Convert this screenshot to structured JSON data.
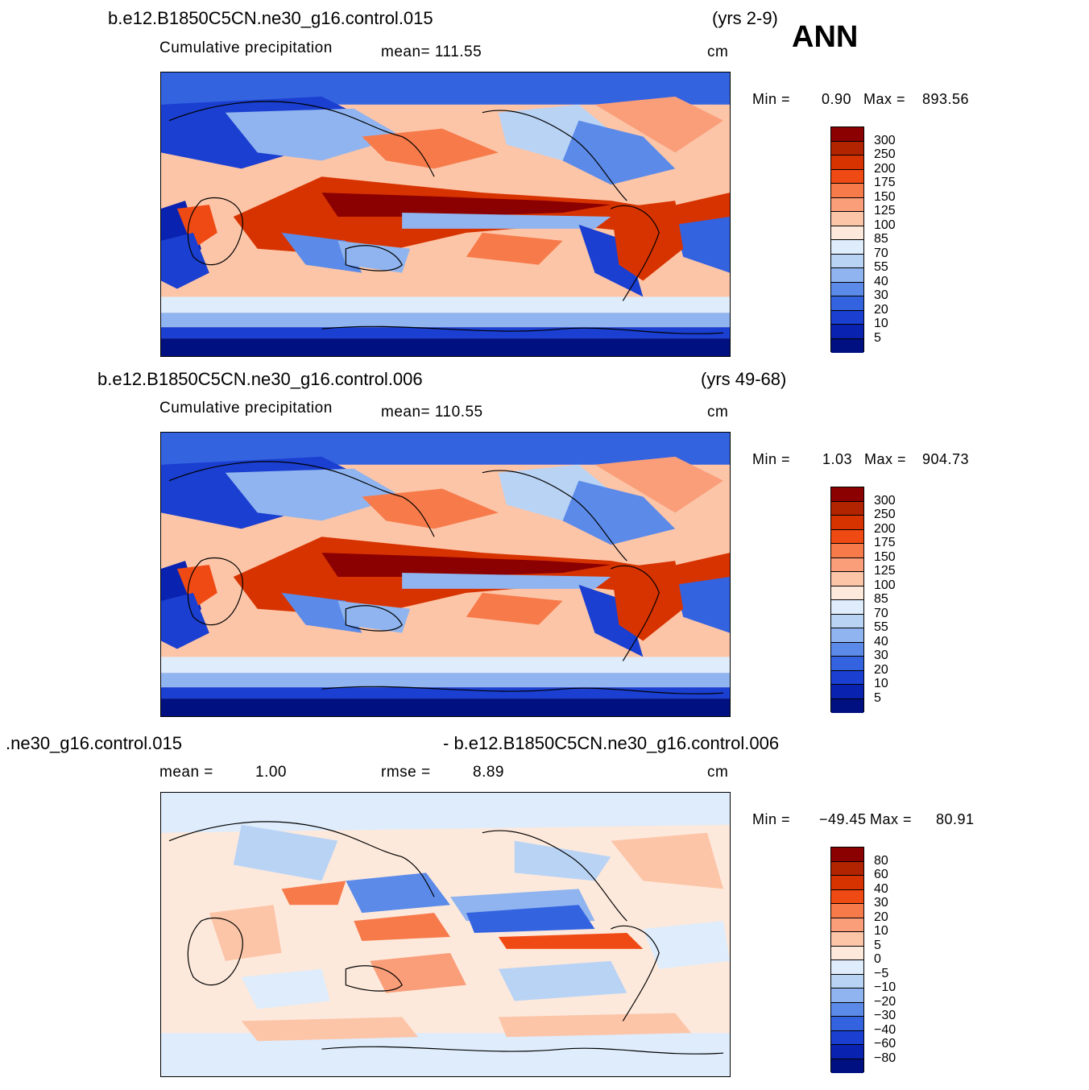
{
  "header": {
    "season": "ANN"
  },
  "panels": [
    {
      "case_title": "b.e12.B1850C5CN.ne30_g16.control.015",
      "years": "(yrs 2-9)",
      "variable": "Cumulative precipitation",
      "mean_text": "mean= 111.55",
      "units": "cm",
      "min_label": "Min =",
      "min_value": "0.90",
      "max_label": "Max =",
      "max_value": "893.56",
      "legend_labels": [
        "300",
        "250",
        "200",
        "175",
        "150",
        "125",
        "100",
        "85",
        "70",
        "55",
        "40",
        "30",
        "20",
        "10",
        "5"
      ],
      "colors": [
        "#8b0000",
        "#b22400",
        "#d73300",
        "#f04a14",
        "#f77a4a",
        "#fa9e7a",
        "#fcc5a8",
        "#fde9dc",
        "#deecfb",
        "#b9d3f5",
        "#8fb4ef",
        "#5b8ae8",
        "#3463e0",
        "#1a3fd1",
        "#0a22b0",
        "#001080"
      ]
    },
    {
      "case_title": "b.e12.B1850C5CN.ne30_g16.control.006",
      "years": "(yrs 49-68)",
      "variable": "Cumulative precipitation",
      "mean_text": "mean= 110.55",
      "units": "cm",
      "min_label": "Min =",
      "min_value": "1.03",
      "max_label": "Max =",
      "max_value": "904.73",
      "legend_labels": [
        "300",
        "250",
        "200",
        "175",
        "150",
        "125",
        "100",
        "85",
        "70",
        "55",
        "40",
        "30",
        "20",
        "10",
        "5"
      ],
      "colors": [
        "#8b0000",
        "#b22400",
        "#d73300",
        "#f04a14",
        "#f77a4a",
        "#fa9e7a",
        "#fcc5a8",
        "#fde9dc",
        "#deecfb",
        "#b9d3f5",
        "#8fb4ef",
        "#5b8ae8",
        "#3463e0",
        "#1a3fd1",
        "#0a22b0",
        "#001080"
      ]
    },
    {
      "case_left": ".ne30_g16.control.015",
      "case_right": "- b.e12.B1850C5CN.ne30_g16.control.006",
      "mean_label": "mean =",
      "mean_value": "1.00",
      "rmse_label": "rmse =",
      "rmse_value": "8.89",
      "units": "cm",
      "min_label": "Min =",
      "min_value": "−49.45",
      "max_label": "Max =",
      "max_value": "80.91",
      "legend_labels": [
        "80",
        "60",
        "40",
        "30",
        "20",
        "10",
        "5",
        "0",
        "−5",
        "−10",
        "−20",
        "−30",
        "−40",
        "−60",
        "−80"
      ],
      "colors": [
        "#8b0000",
        "#b22400",
        "#d73300",
        "#f04a14",
        "#f77a4a",
        "#fa9e7a",
        "#fcc5a8",
        "#fde9dc",
        "#deecfb",
        "#b9d3f5",
        "#8fb4ef",
        "#5b8ae8",
        "#3463e0",
        "#1a3fd1",
        "#0a22b0",
        "#001080"
      ]
    }
  ]
}
